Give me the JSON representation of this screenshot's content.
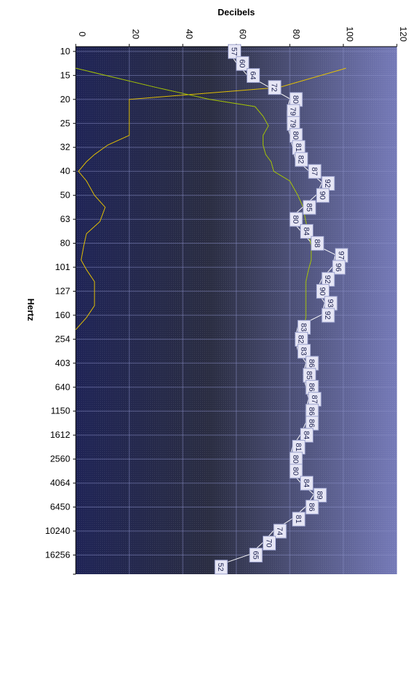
{
  "chart_data": {
    "type": "line",
    "xlabel": "Decibels",
    "ylabel": "Hertz",
    "xlim": [
      0,
      120
    ],
    "x_ticks": [
      "0",
      "20",
      "40",
      "60",
      "80",
      "100",
      "120"
    ],
    "y_ticks": [
      "10",
      "15",
      "20",
      "25",
      "32",
      "40",
      "50",
      "63",
      "80",
      "101",
      "127",
      "160",
      "254",
      "403",
      "640",
      "1150",
      "1612",
      "2560",
      "4064",
      "6450",
      "10240",
      "16256"
    ],
    "grid": true,
    "background_gradient": [
      "#1f2456",
      "#2a2d42",
      "#757ab8"
    ],
    "colors": {
      "primary": "#ffffff",
      "yellow": "#e8c400",
      "green": "#a8c800"
    },
    "series": [
      {
        "values": [
          57,
          60,
          64,
          72,
          80,
          79,
          79,
          80,
          81,
          82,
          87,
          92,
          90,
          85,
          80,
          84,
          88,
          97,
          96,
          92,
          90,
          93,
          92,
          83,
          82,
          83,
          86,
          85,
          86,
          87,
          86,
          86,
          84,
          81,
          80,
          80,
          84,
          89,
          86,
          81,
          74,
          70,
          65,
          52
        ],
        "labels": [
          "57",
          "60",
          "64",
          "72",
          "80",
          "79",
          "79",
          "80",
          "81",
          "82",
          "87",
          "92",
          "90",
          "85",
          "80",
          "84",
          "88",
          "97",
          "96",
          "92",
          "90",
          "93",
          "92",
          "83",
          "82",
          "83",
          "86",
          "85",
          "86",
          "87",
          "86",
          "86",
          "84",
          "81",
          "80",
          "80",
          "84",
          "89",
          "86",
          "81",
          "74",
          "70",
          "65",
          "52"
        ],
        "color": "#ffffff"
      },
      {
        "y": [
          0.9,
          1.7,
          2.2,
          2.5,
          2.9,
          3.3,
          3.7,
          4.1,
          4.5,
          4.8,
          5.2,
          5.6,
          6.2,
          6.7,
          7.3,
          7.8,
          8.3,
          8.9,
          9.3,
          9.8,
          10.3,
          10.8,
          11.3,
          11.8
        ],
        "values": [
          101,
          76,
          20,
          20,
          20,
          20,
          20,
          12,
          7,
          4,
          1,
          4,
          7,
          11,
          9,
          4,
          3,
          2,
          4,
          7,
          7,
          7,
          4,
          0
        ],
        "color": "#e8c400"
      },
      {
        "y": [
          0.9,
          1.7,
          2.2,
          2.5,
          2.9,
          3.3,
          3.7,
          4.1,
          4.5,
          4.8,
          5.2,
          5.6,
          6.2,
          6.7,
          7.3,
          7.8,
          8.3,
          8.9,
          9.3,
          9.8,
          10.3,
          10.8,
          11.3,
          11.8
        ],
        "values": [
          0,
          30,
          50,
          67,
          70,
          72,
          70,
          70,
          71,
          73,
          74,
          80,
          83,
          85,
          86,
          87,
          88,
          88,
          87,
          86,
          86,
          86,
          86,
          85
        ],
        "color": "#a8c800"
      }
    ]
  }
}
